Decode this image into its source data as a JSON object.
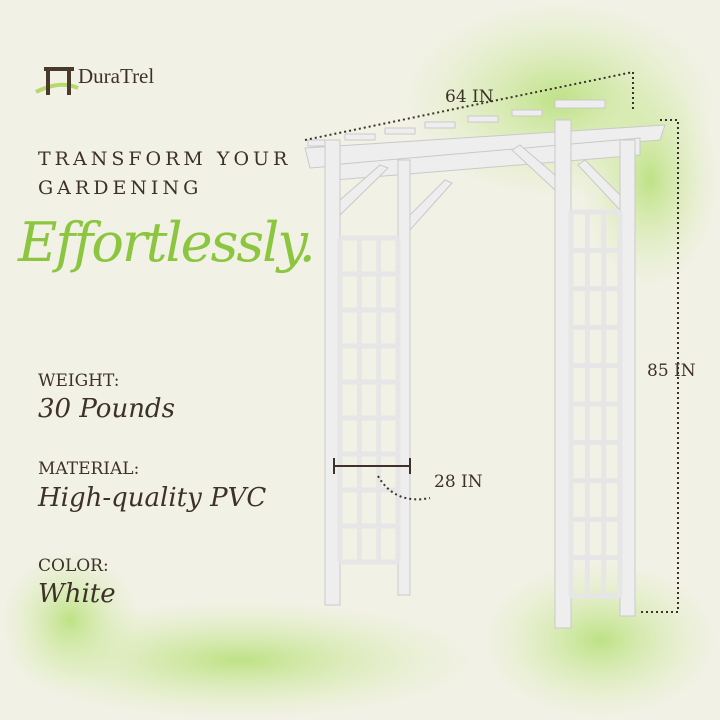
{
  "brand": {
    "name": "DuraTrel",
    "logo_icon": "arbor-icon"
  },
  "headline": {
    "line1": "TRANSFORM YOUR",
    "line2": "GARDENING",
    "script": "Effortlessly."
  },
  "specs": [
    {
      "label": "WEIGHT:",
      "value": "30 Pounds"
    },
    {
      "label": "MATERIAL:",
      "value": "High-quality PVC"
    },
    {
      "label": "COLOR:",
      "value": "White"
    }
  ],
  "dimensions": {
    "width": "64 IN",
    "height": "85 IN",
    "depth": "28 IN"
  },
  "colors": {
    "background": "#f2f1e6",
    "accent_green": "#8cc63f",
    "text": "#3d3128",
    "arbor": "#eeeeee"
  }
}
